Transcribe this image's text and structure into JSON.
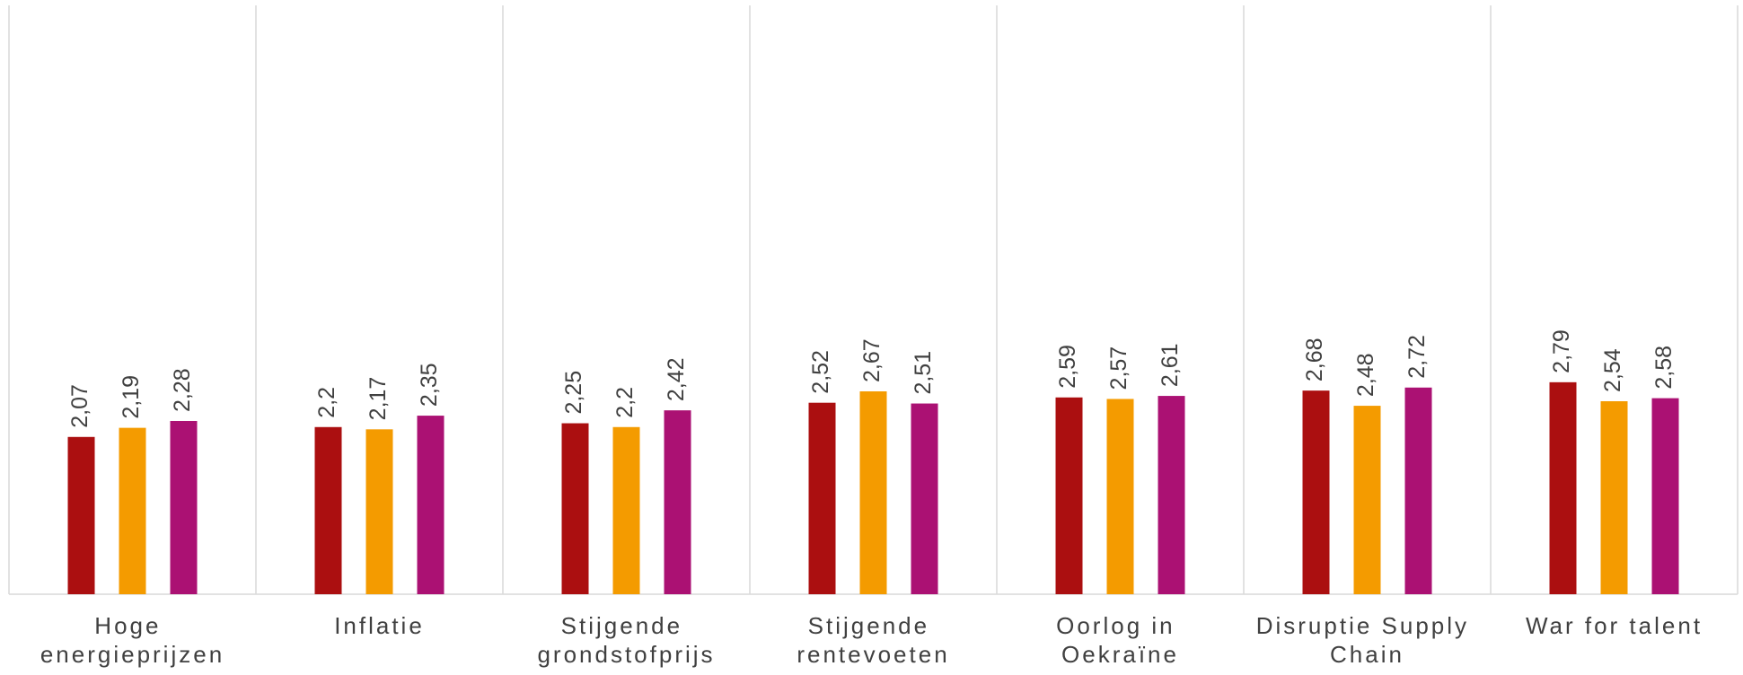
{
  "chart_data": {
    "type": "bar",
    "categories": [
      "Hoge energieprijzen",
      "Inflatie",
      "Stijgende grondstofprijs",
      "Stijgende rentevoeten",
      "Oorlog in Oekraïne",
      "Disruptie Supply Chain",
      "War for talent"
    ],
    "series": [
      {
        "color": "#ab0f10",
        "values": [
          2.07,
          2.2,
          2.25,
          2.52,
          2.59,
          2.68,
          2.79
        ],
        "value_labels": [
          "2,07",
          "2,2",
          "2,25",
          "2,52",
          "2,59",
          "2,68",
          "2,79"
        ]
      },
      {
        "color": "#f49b00",
        "values": [
          2.19,
          2.17,
          2.2,
          2.67,
          2.57,
          2.48,
          2.54
        ],
        "value_labels": [
          "2,19",
          "2,17",
          "2,2",
          "2,67",
          "2,57",
          "2,48",
          "2,54"
        ]
      },
      {
        "color": "#ab1173",
        "values": [
          2.28,
          2.35,
          2.42,
          2.51,
          2.61,
          2.72,
          2.58
        ],
        "value_labels": [
          "2,28",
          "2,35",
          "2,42",
          "2,51",
          "2,61",
          "2,72",
          "2,58"
        ]
      }
    ],
    "ylim": [
      0,
      7.75
    ]
  }
}
